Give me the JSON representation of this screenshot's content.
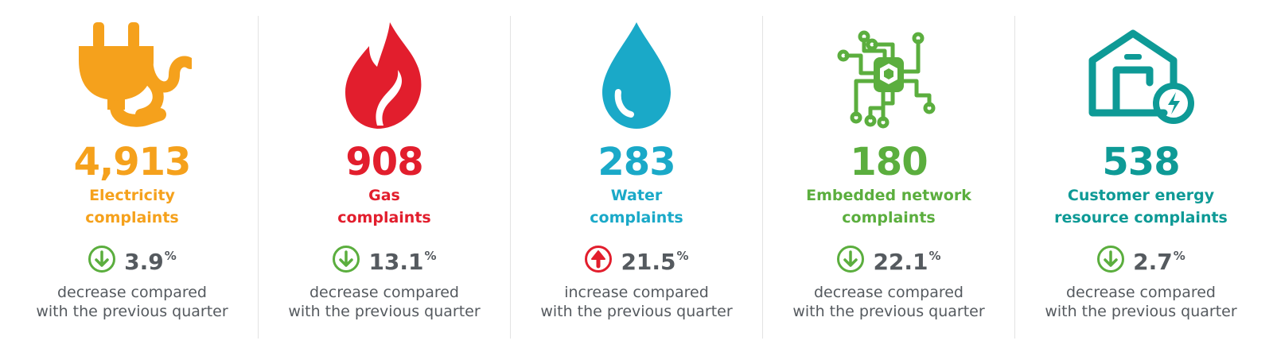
{
  "cards": [
    {
      "icon": "plug-icon",
      "color": "#F5A11C",
      "value": "4,913",
      "label_line1": "Electricity",
      "label_line2": "complaints",
      "direction": "down",
      "arrow_color": "#5BAE3E",
      "change_value": "3.9",
      "change_unit": "%",
      "desc_line1": "decrease compared",
      "desc_line2": "with the previous quarter"
    },
    {
      "icon": "flame-icon",
      "color": "#E21E2D",
      "value": "908",
      "label_line1": "Gas",
      "label_line2": "complaints",
      "direction": "down",
      "arrow_color": "#5BAE3E",
      "change_value": "13.1",
      "change_unit": "%",
      "desc_line1": "decrease compared",
      "desc_line2": "with the previous quarter"
    },
    {
      "icon": "water-drop-icon",
      "color": "#1AA9C8",
      "value": "283",
      "label_line1": "Water",
      "label_line2": "complaints",
      "direction": "up",
      "arrow_color": "#E21E2D",
      "change_value": "21.5",
      "change_unit": "%",
      "desc_line1": "increase compared",
      "desc_line2": "with the previous quarter"
    },
    {
      "icon": "circuit-network-icon",
      "color": "#5BAE3E",
      "value": "180",
      "label_line1": "Embedded network",
      "label_line2": "complaints",
      "direction": "down",
      "arrow_color": "#5BAE3E",
      "change_value": "22.1",
      "change_unit": "%",
      "desc_line1": "decrease compared",
      "desc_line2": "with the previous quarter"
    },
    {
      "icon": "energy-storage-icon",
      "color": "#0E9A96",
      "value": "538",
      "label_line1": "Customer energy",
      "label_line2": "resource complaints",
      "direction": "down",
      "arrow_color": "#5BAE3E",
      "change_value": "2.7",
      "change_unit": "%",
      "desc_line1": "decrease compared",
      "desc_line2": "with the previous quarter"
    }
  ]
}
